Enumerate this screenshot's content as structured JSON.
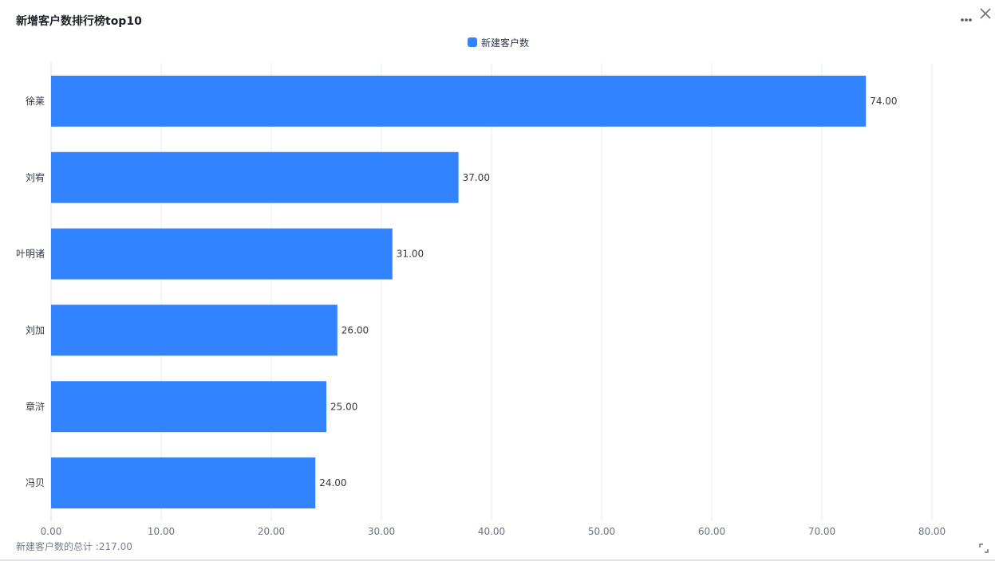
{
  "panel": {
    "title": "新增客户数排行榜top10",
    "more_icon": "more-horizontal-icon",
    "close_icon": "close-icon",
    "expand_icon": "expand-corner-icon",
    "total_label": "新建客户数的总计 :217.00"
  },
  "colors": {
    "bar": "#3283FF",
    "grid": "#E8EBF0",
    "axis_text": "#6B7280",
    "value_text": "#333A44"
  },
  "chart_data": {
    "type": "bar",
    "orientation": "horizontal",
    "categories": [
      "徐莱",
      "刘宥",
      "叶明诸",
      "刘加",
      "章浒",
      "冯贝"
    ],
    "series": [
      {
        "name": "新建客户数",
        "values": [
          74,
          37,
          31,
          26,
          25,
          24
        ],
        "value_labels": [
          "74.00",
          "37.00",
          "31.00",
          "26.00",
          "25.00",
          "24.00"
        ]
      }
    ],
    "xlim": [
      0,
      80
    ],
    "x_ticks": [
      0,
      10,
      20,
      30,
      40,
      50,
      60,
      70,
      80
    ],
    "x_tick_labels": [
      "0.00",
      "10.00",
      "20.00",
      "30.00",
      "40.00",
      "50.00",
      "60.00",
      "70.00",
      "80.00"
    ],
    "grid": true,
    "legend_position": "top-center"
  }
}
